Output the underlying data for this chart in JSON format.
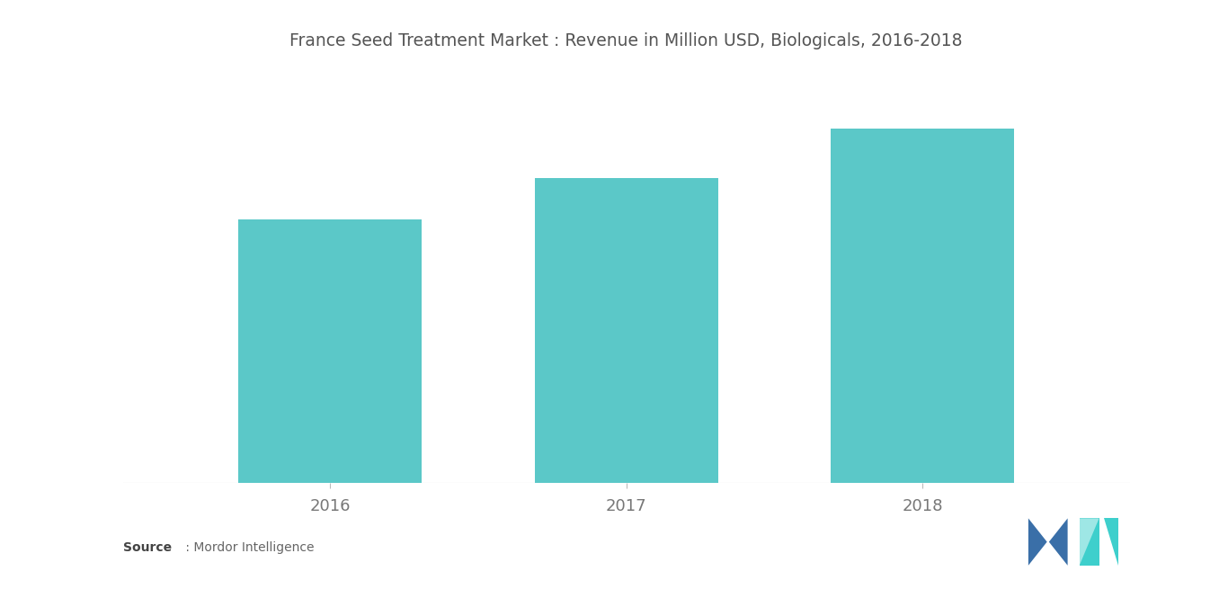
{
  "title": "France Seed Treatment Market : Revenue in Million USD, Biologicals, 2016-2018",
  "categories": [
    "2016",
    "2017",
    "2018"
  ],
  "values": [
    3.2,
    3.7,
    4.3
  ],
  "bar_color": "#5bc8c8",
  "background_color": "#ffffff",
  "ylim": [
    0,
    5.0
  ],
  "title_fontsize": 13.5,
  "tick_fontsize": 13,
  "source_bold": "Source",
  "source_rest": " : Mordor Intelligence",
  "bar_width": 0.62
}
